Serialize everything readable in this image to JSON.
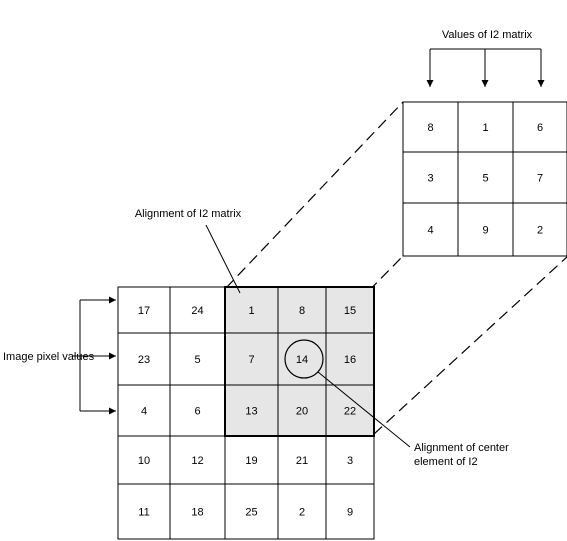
{
  "labels": {
    "top_matrix": "Values of I2 matrix",
    "alignment_matrix": "Alignment of I2 matrix",
    "image_pixels": "Image pixel values",
    "center_line1": "Alignment of center",
    "center_line2": "element of I2"
  },
  "i2_matrix": [
    [
      "8",
      "1",
      "6"
    ],
    [
      "3",
      "5",
      "7"
    ],
    [
      "4",
      "9",
      "2"
    ]
  ],
  "image_matrix": [
    [
      "17",
      "24",
      "1",
      "8",
      "15"
    ],
    [
      "23",
      "5",
      "7",
      "14",
      "16"
    ],
    [
      "4",
      "6",
      "13",
      "20",
      "22"
    ],
    [
      "10",
      "12",
      "19",
      "21",
      "3"
    ],
    [
      "11",
      "18",
      "25",
      "2",
      "9"
    ]
  ],
  "highlight": {
    "rows": [
      0,
      1,
      2
    ],
    "cols": [
      2,
      3,
      4
    ],
    "fill": "#e6e6e6",
    "center": [
      1,
      3
    ]
  }
}
